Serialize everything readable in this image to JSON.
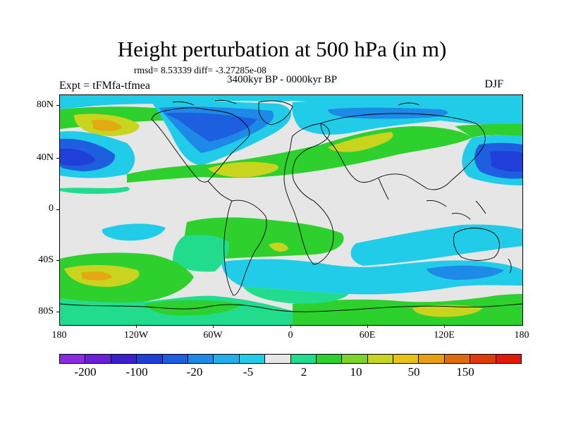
{
  "title": "Height perturbation at 500 hPa (in m)",
  "stats": "rmsd= 8.53339 diff= -3.27285e-08",
  "experiment": "Expt = tFMfa-tfmea",
  "period": "3400kyr BP - 0000kyr BP",
  "season": "DJF",
  "lat_labels": [
    "80N",
    "40N",
    "0",
    "40S",
    "80S"
  ],
  "lon_labels": [
    "180",
    "120W",
    "60W",
    "0",
    "60E",
    "120E",
    "180"
  ],
  "colorbar": {
    "labels": [
      "-200",
      "-100",
      "-20",
      "-5",
      "2",
      "10",
      "50",
      "150"
    ],
    "colors": [
      "#8a2be2",
      "#6a1fd8",
      "#3b1fcf",
      "#1f3fd8",
      "#1e5fe0",
      "#1e8ae8",
      "#22aeea",
      "#20cce8",
      "#e6e6e6",
      "#20dc8c",
      "#2ed02e",
      "#7ad42a",
      "#c8d41e",
      "#e6c214",
      "#e8a012",
      "#e06a10",
      "#e03a0c",
      "#e01a0a"
    ]
  },
  "map_colors": {
    "neutral": "#e6e6e6",
    "light_blue": "#20cce8",
    "mid_blue": "#1e8ae8",
    "blue": "#1e5fe0",
    "dark_blue": "#1f3fd8",
    "teal": "#20dc8c",
    "green": "#2ed02e",
    "yellow_green": "#c8d41e",
    "orange": "#e8a012"
  }
}
